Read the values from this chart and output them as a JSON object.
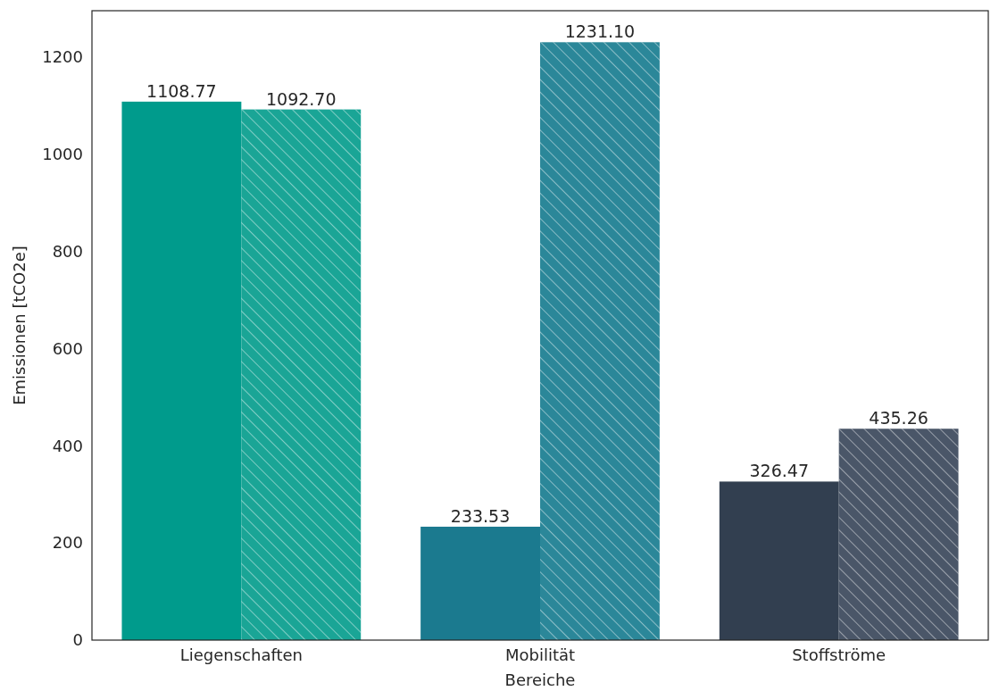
{
  "chart_data": {
    "type": "bar",
    "xlabel": "Bereiche",
    "ylabel": "Emissionen [tCO2e]",
    "categories": [
      "Liegenschaften",
      "Mobilität",
      "Stoffströme"
    ],
    "series": [
      {
        "colors": [
          "#009b8c",
          "#1b7a8f",
          "#323f50"
        ],
        "values": [
          1108.77,
          233.53,
          326.47
        ]
      },
      {
        "colors": [
          "#1aa596",
          "#2b8799",
          "#4a5668"
        ],
        "values": [
          1092.7,
          1231.1,
          435.26
        ]
      }
    ],
    "value_labels": [
      [
        "1108.77",
        "233.53",
        "326.47"
      ],
      [
        "1092.70",
        "1231.10",
        "435.26"
      ]
    ],
    "ylim": [
      0,
      1296
    ],
    "yticks": [
      0,
      200,
      400,
      600,
      800,
      1000,
      1200
    ],
    "grid": false
  }
}
